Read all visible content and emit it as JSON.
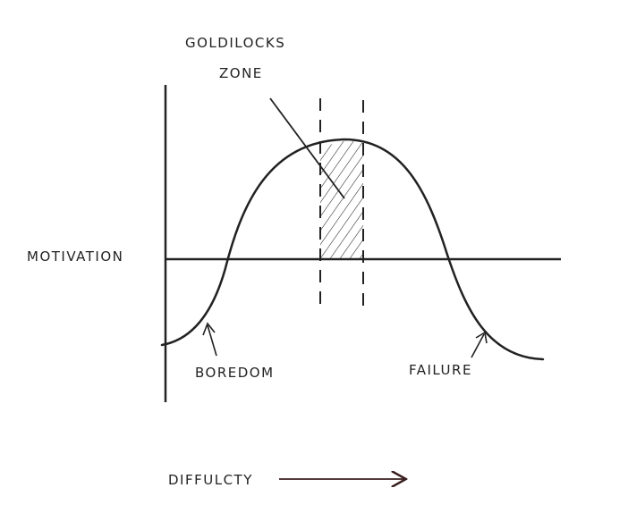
{
  "diagram": {
    "zone_label_line1": "GOLDILOCKS",
    "zone_label_line2": "ZONE",
    "y_axis_label": "MOTIVATION",
    "x_axis_label": "DIFFULCTY",
    "left_annotation": "BOREDOM",
    "right_annotation": "FAILURE",
    "colors": {
      "ink": "#222222",
      "arrow_ink": "#3a1f1f",
      "background": "#ffffff"
    }
  }
}
